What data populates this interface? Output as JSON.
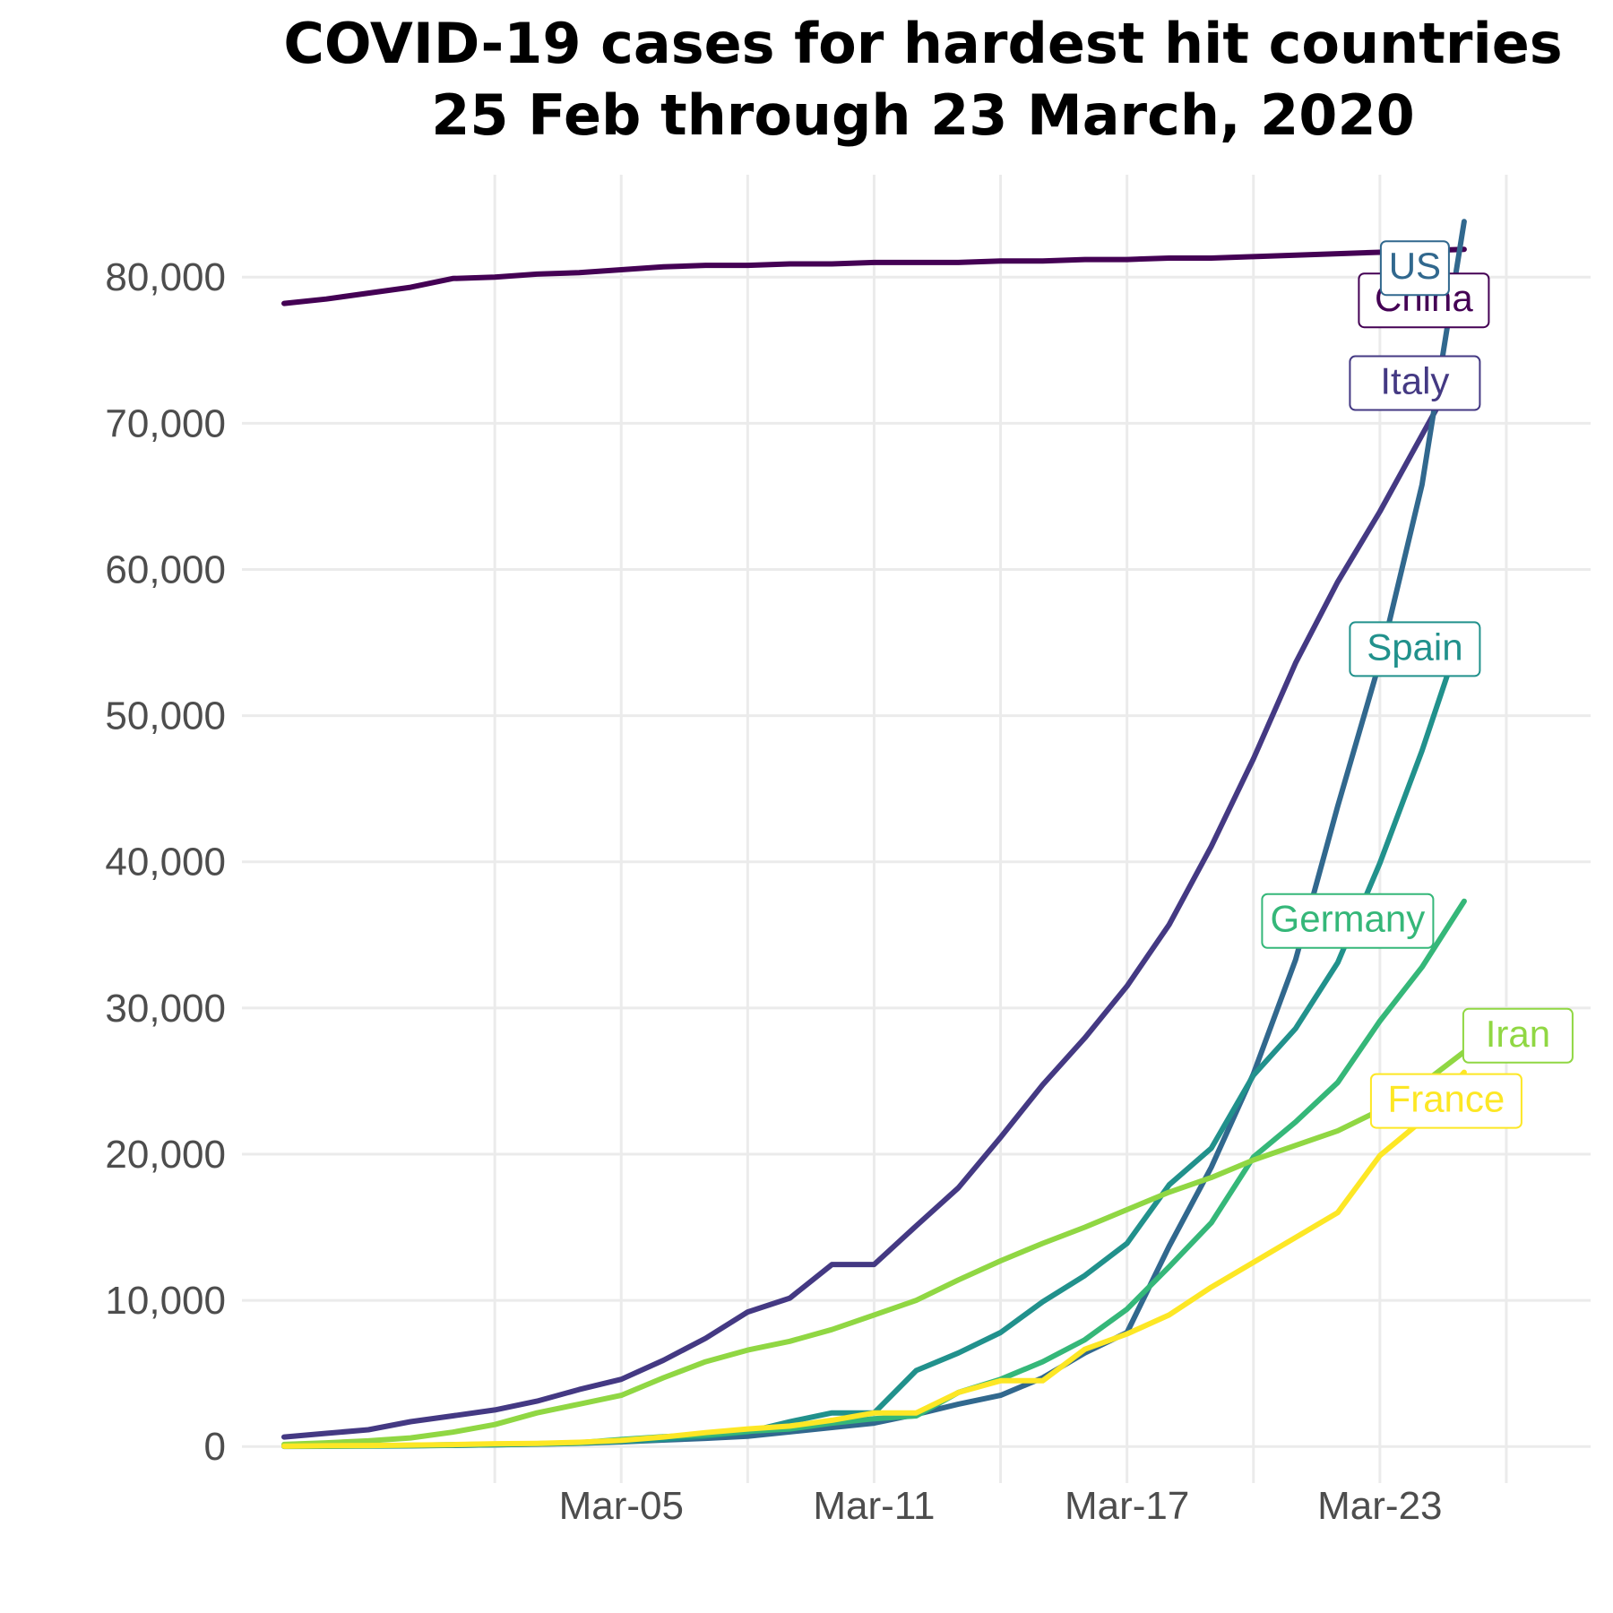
{
  "chart_data": {
    "type": "line",
    "title_lines": [
      "COVID-19 cases for hardest hit countries",
      "25 Feb through 23 March, 2020"
    ],
    "xlabel": "",
    "ylabel": "",
    "x_range": [
      "2020-02-25",
      "2020-03-28"
    ],
    "ylim": [
      -2500,
      87000
    ],
    "y_ticks": [
      0,
      10000,
      20000,
      30000,
      40000,
      50000,
      60000,
      70000,
      80000
    ],
    "y_tick_labels": [
      "0",
      "10,000",
      "20,000",
      "30,000",
      "40,000",
      "50,000",
      "60,000",
      "70,000",
      "80,000"
    ],
    "x_ticks": [
      "2020-03-05",
      "2020-03-11",
      "2020-03-17",
      "2020-03-23"
    ],
    "x_tick_labels": [
      "Mar-05",
      "Mar-11",
      "Mar-17",
      "Mar-23"
    ],
    "grid": true,
    "legend": "direct labels at line ends",
    "dates": [
      "2020-02-26",
      "2020-02-27",
      "2020-02-28",
      "2020-02-29",
      "2020-03-01",
      "2020-03-02",
      "2020-03-03",
      "2020-03-04",
      "2020-03-05",
      "2020-03-06",
      "2020-03-07",
      "2020-03-08",
      "2020-03-09",
      "2020-03-10",
      "2020-03-11",
      "2020-03-12",
      "2020-03-13",
      "2020-03-14",
      "2020-03-15",
      "2020-03-16",
      "2020-03-17",
      "2020-03-18",
      "2020-03-19",
      "2020-03-20",
      "2020-03-21",
      "2020-03-22",
      "2020-03-23",
      "2020-03-24",
      "2020-03-25"
    ],
    "series": [
      {
        "name": "China",
        "color": "#440154",
        "values": [
          78200,
          78500,
          78900,
          79300,
          79900,
          80000,
          80200,
          80300,
          80500,
          80700,
          80800,
          80800,
          80900,
          80900,
          81000,
          81000,
          81000,
          81100,
          81100,
          81200,
          81200,
          81300,
          81300,
          81400,
          81500,
          81600,
          81700,
          81800,
          81900
        ]
      },
      {
        "name": "Italy",
        "color": "#443983",
        "values": [
          650,
          900,
          1150,
          1700,
          2100,
          2500,
          3100,
          3900,
          4600,
          5900,
          7400,
          9200,
          10150,
          12450,
          12450,
          15100,
          17700,
          21150,
          24750,
          27950,
          31500,
          35700,
          41050,
          47050,
          53600,
          59150,
          63950,
          69200,
          74400
        ]
      },
      {
        "name": "US",
        "color": "#31688e",
        "values": [
          60,
          60,
          60,
          70,
          80,
          120,
          160,
          220,
          320,
          440,
          560,
          700,
          1000,
          1300,
          1600,
          2200,
          2900,
          3500,
          4700,
          6400,
          7800,
          13700,
          19100,
          25500,
          33300,
          43800,
          53700,
          65800,
          83800
        ]
      },
      {
        "name": "Spain",
        "color": "#21918c",
        "values": [
          10,
          15,
          30,
          45,
          80,
          120,
          170,
          230,
          350,
          500,
          700,
          1000,
          1700,
          2300,
          2300,
          5200,
          6400,
          7800,
          9900,
          11700,
          13900,
          17900,
          20400,
          25400,
          28600,
          33100,
          39900,
          47600,
          56200
        ]
      },
      {
        "name": "Germany",
        "color": "#35b779",
        "values": [
          20,
          30,
          50,
          80,
          130,
          160,
          200,
          260,
          480,
          670,
          800,
          1040,
          1200,
          1600,
          1900,
          2100,
          3700,
          4600,
          5800,
          7300,
          9400,
          12300,
          15300,
          19800,
          22200,
          24900,
          29100,
          32800,
          37300
        ]
      },
      {
        "name": "Iran",
        "color": "#90d743",
        "values": [
          140,
          250,
          390,
          590,
          980,
          1500,
          2300,
          2900,
          3500,
          4700,
          5800,
          6600,
          7200,
          8000,
          9000,
          10000,
          11400,
          12700,
          13900,
          15000,
          16200,
          17400,
          18400,
          19600,
          20600,
          21600,
          23000,
          24800,
          27000
        ]
      },
      {
        "name": "France",
        "color": "#fde725",
        "values": [
          20,
          50,
          70,
          100,
          130,
          190,
          210,
          290,
          420,
          650,
          950,
          1200,
          1400,
          1800,
          2300,
          2300,
          3700,
          4500,
          4500,
          6650,
          7700,
          9000,
          10900,
          12600,
          14300,
          16000,
          19900,
          22300,
          25600
        ]
      }
    ],
    "annotations": [
      {
        "text": "China",
        "series": "China"
      },
      {
        "text": "Italy",
        "series": "Italy"
      },
      {
        "text": "US",
        "series": "US"
      },
      {
        "text": "Spain",
        "series": "Spain"
      },
      {
        "text": "Germany",
        "series": "Germany"
      },
      {
        "text": "Iran",
        "series": "Iran"
      },
      {
        "text": "France",
        "series": "France"
      }
    ]
  }
}
